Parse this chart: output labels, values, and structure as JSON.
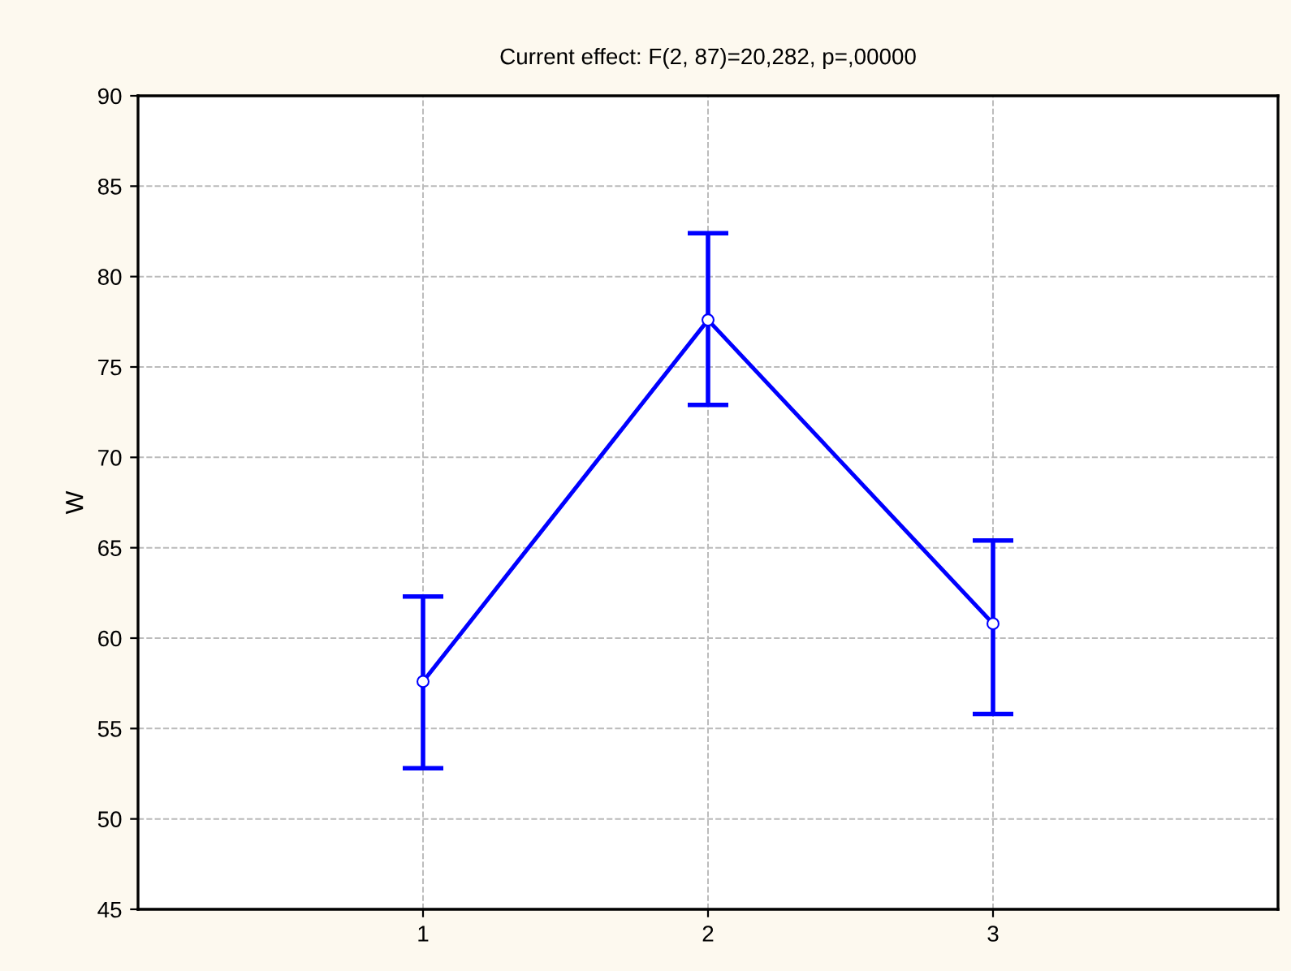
{
  "chart_data": {
    "type": "line",
    "title": "Current effect: F(2, 87)=20,282, p=,00000",
    "ylabel": "W",
    "x": [
      1,
      2,
      3
    ],
    "series": [
      {
        "color": "#0000ff",
        "values": [
          57.6,
          77.6,
          60.8
        ],
        "errors": [
          [
            52.8,
            62.3
          ],
          [
            72.9,
            82.4
          ],
          [
            55.8,
            65.4
          ]
        ]
      }
    ],
    "xlim": [
      0,
      4
    ],
    "xticks": [
      1,
      2,
      3
    ],
    "ylim": [
      45,
      90
    ],
    "yticks": [
      45,
      50,
      55,
      60,
      65,
      70,
      75,
      80,
      85,
      90
    ],
    "grid": true,
    "marker": "circle",
    "line_style": "solid",
    "legend": false
  }
}
